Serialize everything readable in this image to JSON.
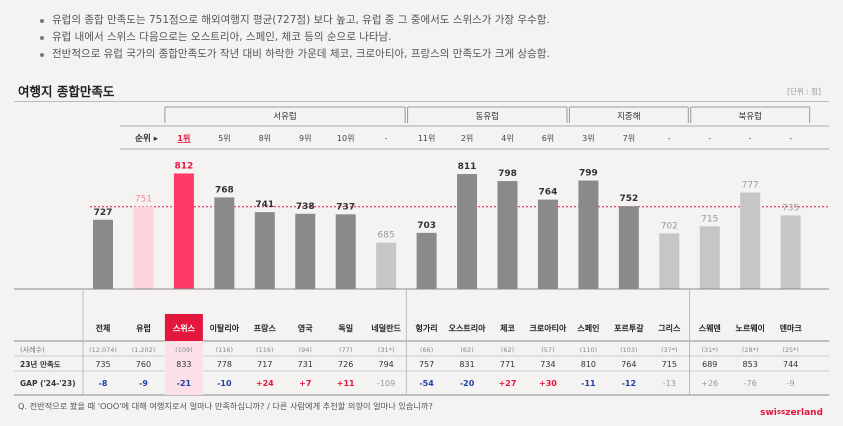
{
  "bullets": [
    "유럽의 종합 만족도는 751점으로 해외여행지 평균(727점) 보다 높고, 유럽 중 그 중에서도 스위스가 가장 우수함.",
    "유럽 내에서 스위스 다음으로는 오스트리아, 스페인, 체코 등의 순으로 나타남.",
    "전반적으로 유럽 국가의 종합만족도가 작년 대비 하락한 가운데 체코, 크로아티아, 프랑스의 만족도가 크게 상승함."
  ],
  "title": "여행지 종합만족도",
  "unit": "[단위 : 점]",
  "question": "Q. 전반적으로 봤을 때 'OOO'에 대해 여행지로서 얼마나 만족하십니까? / 다른 사람에게 추천할 의향이 얼마나 있습니까?",
  "logo": "switzerland",
  "colors": {
    "dark": "#8a8a8a",
    "light": "#c6c6c6",
    "pink": "#ffd3dc",
    "red": "#ff3a67",
    "accent": "#e3173e",
    "positive": "#e3173e",
    "negative": "#2240a8",
    "neutral": "#999999"
  },
  "chart_data": {
    "type": "bar",
    "title": "여행지 종합만족도",
    "reference_line": 751,
    "regions": [
      {
        "name": "서유럽",
        "from": 2,
        "to": 7
      },
      {
        "name": "동유럽",
        "from": 8,
        "to": 11
      },
      {
        "name": "지중해",
        "from": 12,
        "to": 14
      },
      {
        "name": "북유럽",
        "from": 15,
        "to": 17
      }
    ],
    "rank_label": "순위",
    "row_labels": {
      "count": "(사례수)",
      "prev": "23년 만족도",
      "gap": "GAP ('24-'23)"
    },
    "categories": [
      "전체",
      "유럽",
      "스위스",
      "이탈리아",
      "프랑스",
      "영국",
      "독일",
      "네덜란드",
      "헝가리",
      "오스트리아",
      "체코",
      "크로아티아",
      "스페인",
      "포르투갈",
      "그리스",
      "스웨덴",
      "노르웨이",
      "덴마크"
    ],
    "values": [
      727,
      751,
      812,
      768,
      741,
      738,
      737,
      685,
      703,
      811,
      798,
      764,
      799,
      752,
      702,
      715,
      777,
      735
    ],
    "styles": [
      "dark",
      "pink",
      "red",
      "dark",
      "dark",
      "dark",
      "dark",
      "light",
      "dark",
      "dark",
      "dark",
      "dark",
      "dark",
      "dark",
      "light",
      "light",
      "light",
      "light"
    ],
    "ranks": [
      "",
      "",
      "1위",
      "5위",
      "8위",
      "9위",
      "10위",
      "-",
      "11위",
      "2위",
      "4위",
      "6위",
      "3위",
      "7위",
      "-",
      "-",
      "-",
      "-"
    ],
    "counts": [
      "(12,074)",
      "(1,202)",
      "(109)",
      "(116)",
      "(116)",
      "(94)",
      "(77)",
      "(31*)",
      "(66)",
      "(62)",
      "(62)",
      "(57)",
      "(110)",
      "(103)",
      "(37*)",
      "(31*)",
      "(28*)",
      "(25*)"
    ],
    "prev": [
      "735",
      "760",
      "833",
      "778",
      "717",
      "731",
      "726",
      "794",
      "757",
      "831",
      "771",
      "734",
      "810",
      "764",
      "715",
      "689",
      "853",
      "744"
    ],
    "gap": [
      "-8",
      "-9",
      "-21",
      "-10",
      "+24",
      "+7",
      "+11",
      "-109",
      "-54",
      "-20",
      "+27",
      "+30",
      "-11",
      "-12",
      "-13",
      "+26",
      "-76",
      "-9"
    ],
    "gap_class": [
      "neg",
      "neg",
      "neg",
      "neg",
      "pos",
      "pos",
      "pos",
      "neu",
      "neg",
      "neg",
      "pos",
      "pos",
      "neg",
      "neg",
      "neu",
      "neu",
      "neu",
      "neu"
    ]
  }
}
